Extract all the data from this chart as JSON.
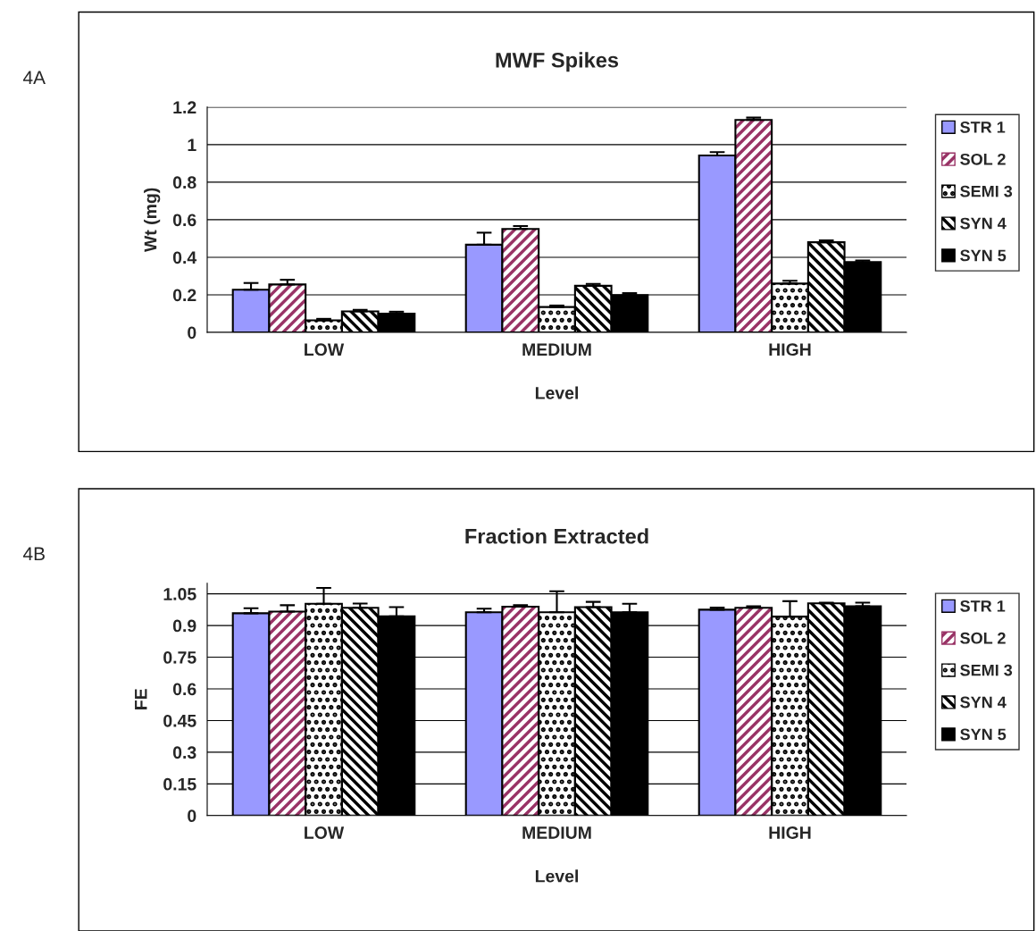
{
  "chart_data": [
    {
      "type": "bar",
      "title": "MWF Spikes",
      "xlabel": "Level",
      "ylabel": "Wt (mg)",
      "annotations": [
        "4A"
      ],
      "categories": [
        "LOW",
        "MEDIUM",
        "HIGH"
      ],
      "ylim": [
        0,
        1.2
      ],
      "yticks": [
        0,
        0.2,
        0.4,
        0.6,
        0.8,
        1,
        1.2
      ],
      "grid": "y",
      "legend": "right",
      "series": [
        {
          "name": "STR 1",
          "color": "#9999ff",
          "values": [
            0.227,
            0.467,
            0.942
          ],
          "errors": [
            0.036,
            0.064,
            0.018
          ]
        },
        {
          "name": "SOL 2",
          "color": "#993366",
          "values": [
            0.255,
            0.551,
            1.131
          ],
          "errors": [
            0.025,
            0.015,
            0.013
          ]
        },
        {
          "name": "SEMI 3",
          "color": "#000000",
          "values": [
            0.064,
            0.135,
            0.26
          ],
          "errors": [
            0.008,
            0.008,
            0.015
          ]
        },
        {
          "name": "SYN 4",
          "color": "#000000",
          "values": [
            0.112,
            0.248,
            0.48
          ],
          "errors": [
            0.008,
            0.01,
            0.01
          ]
        },
        {
          "name": "SYN 5",
          "color": "#000000",
          "values": [
            0.1,
            0.199,
            0.375
          ],
          "errors": [
            0.01,
            0.01,
            0.008
          ]
        }
      ]
    },
    {
      "type": "bar",
      "title": "Fraction Extracted",
      "xlabel": "Level",
      "ylabel": "FE",
      "annotations": [
        "4B"
      ],
      "categories": [
        "LOW",
        "MEDIUM",
        "HIGH"
      ],
      "ylim": [
        0,
        1.1
      ],
      "yticks": [
        0,
        0.15,
        0.3,
        0.45,
        0.6,
        0.75,
        0.9,
        1.05
      ],
      "grid": "y",
      "legend": "right",
      "series": [
        {
          "name": "STR 1",
          "color": "#9999ff",
          "values": [
            0.958,
            0.963,
            0.975
          ],
          "errors": [
            0.024,
            0.017,
            0.01
          ]
        },
        {
          "name": "SOL 2",
          "color": "#993366",
          "values": [
            0.966,
            0.989,
            0.984
          ],
          "errors": [
            0.03,
            0.007,
            0.007
          ]
        },
        {
          "name": "SEMI 3",
          "color": "#000000",
          "values": [
            1.003,
            0.963,
            0.942
          ],
          "errors": [
            0.075,
            0.099,
            0.073
          ]
        },
        {
          "name": "SYN 4",
          "color": "#000000",
          "values": [
            0.984,
            0.987,
            1.005
          ],
          "errors": [
            0.02,
            0.025,
            0.003
          ]
        },
        {
          "name": "SYN 5",
          "color": "#000000",
          "values": [
            0.944,
            0.963,
            0.991
          ],
          "errors": [
            0.043,
            0.04,
            0.017
          ]
        }
      ]
    }
  ]
}
